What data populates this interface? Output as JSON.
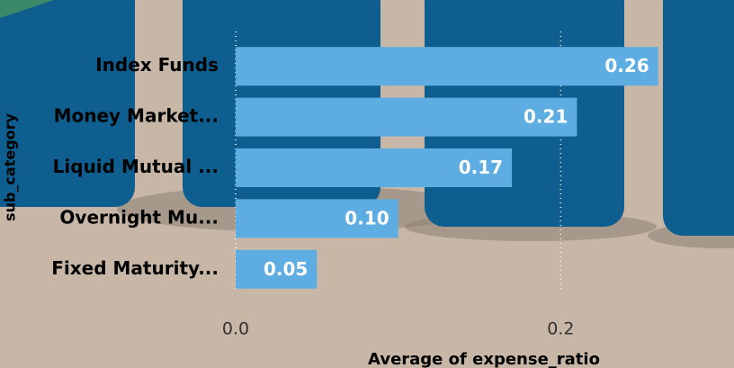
{
  "chart_data": {
    "type": "bar",
    "orientation": "horizontal",
    "x_label": "Average of expense_ratio",
    "y_label": "sub_category",
    "categories": [
      "Index Funds",
      "Money Market...",
      "Liquid Mutual ...",
      "Overnight Mu...",
      "Fixed Maturity..."
    ],
    "values": [
      0.26,
      0.21,
      0.17,
      0.1,
      0.05
    ],
    "value_labels": [
      "0.26",
      "0.21",
      "0.17",
      "0.10",
      "0.05"
    ],
    "color": "#5dade2",
    "xlim": [
      0,
      0.305
    ],
    "xticks": [
      {
        "value": 0,
        "label": "0.0"
      },
      0.2
    ],
    "grid": true
  }
}
